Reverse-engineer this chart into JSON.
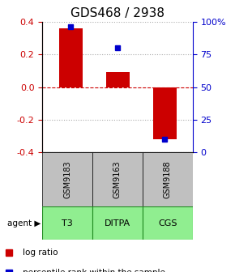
{
  "title": "GDS468 / 2938",
  "samples": [
    "GSM9183",
    "GSM9163",
    "GSM9188"
  ],
  "agents": [
    "T3",
    "DITPA",
    "CGS"
  ],
  "log_ratios": [
    0.36,
    0.09,
    -0.32
  ],
  "percentile_ranks": [
    96,
    80,
    10
  ],
  "ylim_left": [
    -0.4,
    0.4
  ],
  "ylim_right": [
    0,
    100
  ],
  "yticks_left": [
    -0.4,
    -0.2,
    0.0,
    0.2,
    0.4
  ],
  "yticks_right": [
    0,
    25,
    50,
    75,
    100
  ],
  "ytick_labels_right": [
    "0",
    "25",
    "50",
    "75",
    "100%"
  ],
  "bar_color": "#cc0000",
  "dot_color": "#0000cc",
  "grid_color": "#aaaaaa",
  "zero_line_color": "#cc0000",
  "sample_bg": "#c0c0c0",
  "agent_bg": "#90ee90",
  "agent_border": "#228B22",
  "left_tick_color": "#cc0000",
  "right_tick_color": "#0000cc",
  "bar_width": 0.5
}
